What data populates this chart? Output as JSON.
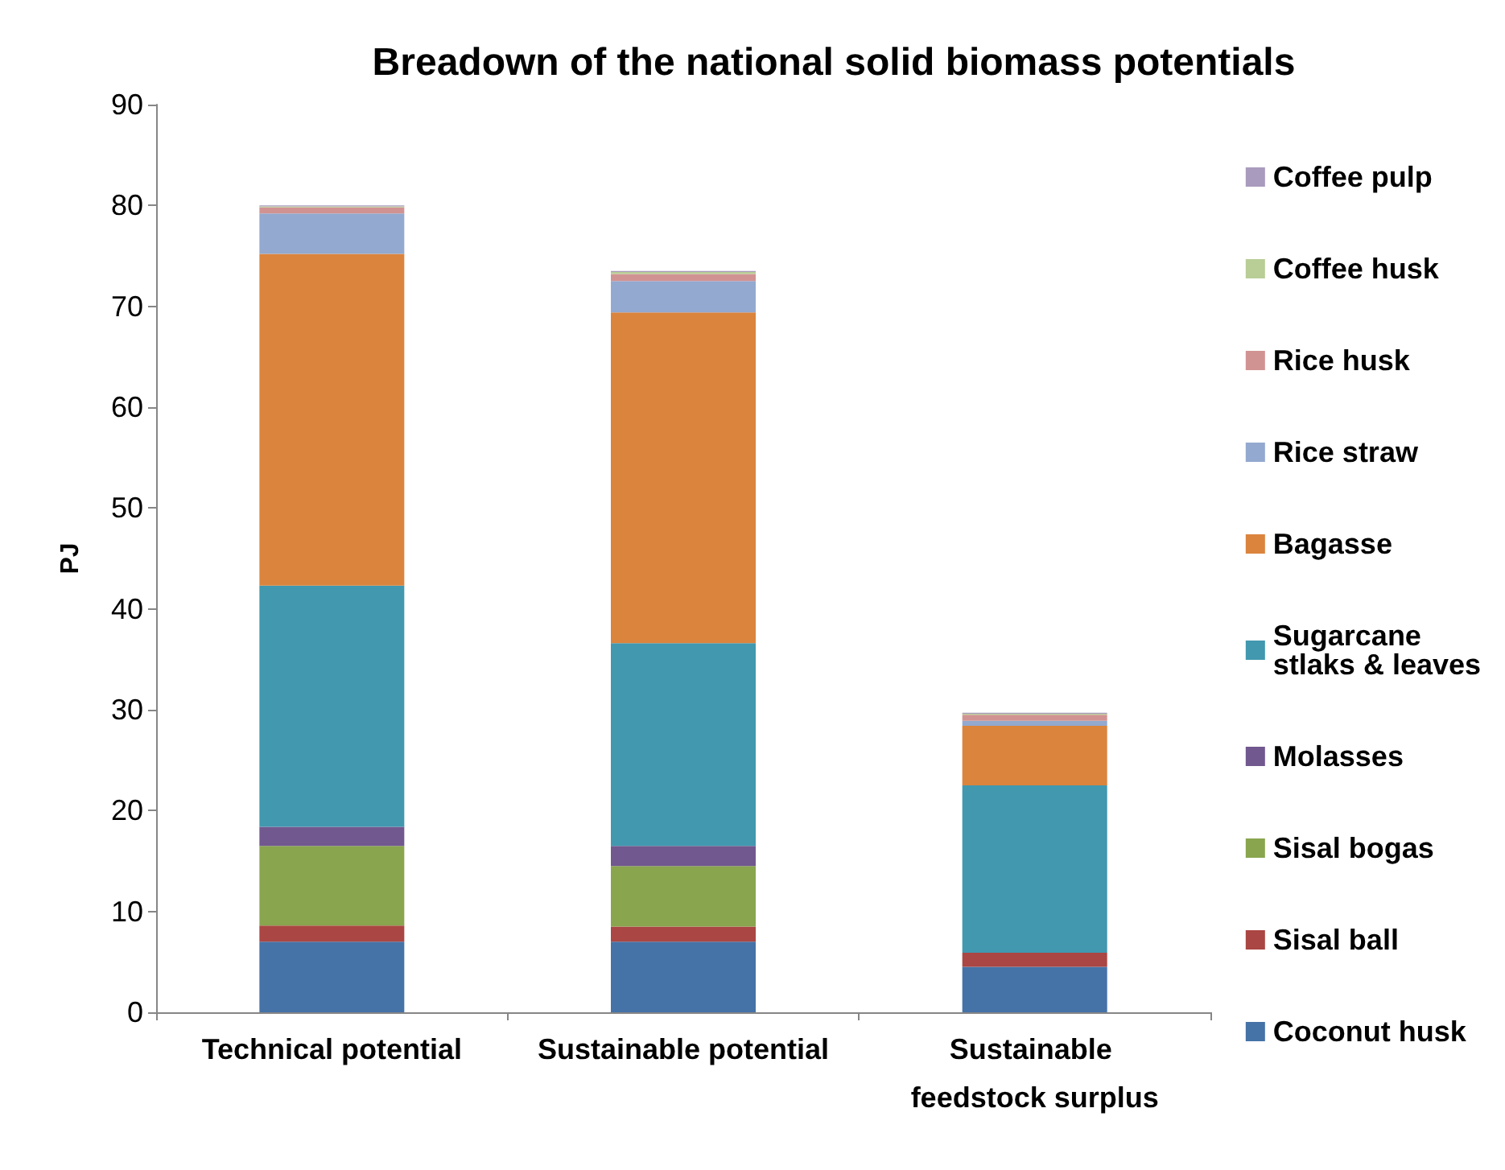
{
  "chart_data": {
    "type": "bar",
    "title": "Breadown of the national solid biomass potentials",
    "ylabel": "PJ",
    "categories": [
      "Technical potential",
      "Sustainable potential",
      "Sustainable feedstock surplus"
    ],
    "stacked": true,
    "ylim": [
      0,
      90
    ],
    "yticks": [
      0,
      10,
      20,
      30,
      40,
      50,
      60,
      70,
      80,
      90
    ],
    "grid": false,
    "legend": "right",
    "series": [
      {
        "name": "Coconut husk",
        "color": "#4572a7",
        "values": [
          7.0,
          7.0,
          4.5
        ]
      },
      {
        "name": "Sisal ball",
        "color": "#aa4643",
        "values": [
          1.6,
          1.5,
          1.4
        ]
      },
      {
        "name": "Sisal bogas",
        "color": "#89a54e",
        "values": [
          7.9,
          6.0,
          0
        ]
      },
      {
        "name": "Molasses",
        "color": "#71588f",
        "values": [
          1.9,
          2.0,
          0
        ]
      },
      {
        "name": "Sugarcane stlaks & leaves",
        "color": "#4198af",
        "values": [
          23.9,
          20.1,
          16.6
        ]
      },
      {
        "name": "Bagasse",
        "color": "#db843d",
        "values": [
          32.9,
          32.8,
          5.9
        ]
      },
      {
        "name": "Rice straw",
        "color": "#93a9cf",
        "values": [
          4.0,
          3.1,
          0.5
        ]
      },
      {
        "name": "Rice husk",
        "color": "#d19392",
        "values": [
          0.6,
          0.7,
          0.6
        ]
      },
      {
        "name": "Coffee husk",
        "color": "#b9cd96",
        "values": [
          0.1,
          0.2,
          0.1
        ]
      },
      {
        "name": "Coffee pulp",
        "color": "#a99bbd",
        "values": [
          0.1,
          0.1,
          0.1
        ]
      }
    ]
  }
}
